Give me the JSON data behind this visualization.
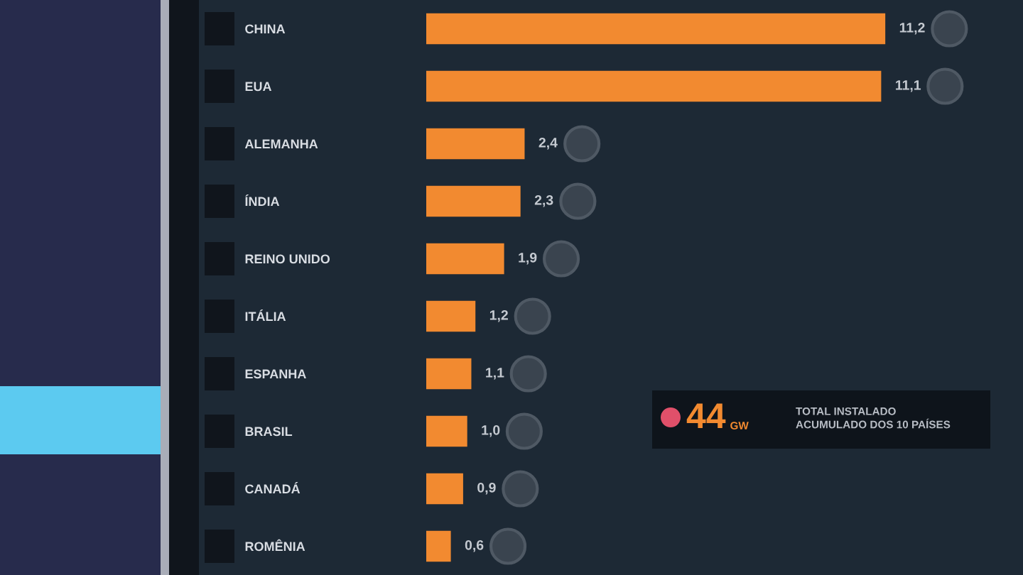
{
  "chart_data": {
    "type": "bar",
    "orientation": "horizontal",
    "categories": [
      "CHINA",
      "EUA",
      "ALEMANHA",
      "ÍNDIA",
      "REINO UNIDO",
      "ITÁLIA",
      "ESPANHA",
      "BRASIL",
      "CANADÁ",
      "ROMÊNIA"
    ],
    "values": [
      11.2,
      11.1,
      2.4,
      2.3,
      1.9,
      1.2,
      1.1,
      1.0,
      0.9,
      0.6
    ],
    "value_labels": [
      "11,2",
      "11,1",
      "2,4",
      "2,3",
      "1,9",
      "1,2",
      "1,1",
      "1,0",
      "0,9",
      "0,6"
    ],
    "color": "#f28a30",
    "tick_labels": "y",
    "annotations": [
      "44",
      "GW",
      "TOTAL INSTALADO\nACUMULADO DOS 10 PAÍSES"
    ]
  }
}
